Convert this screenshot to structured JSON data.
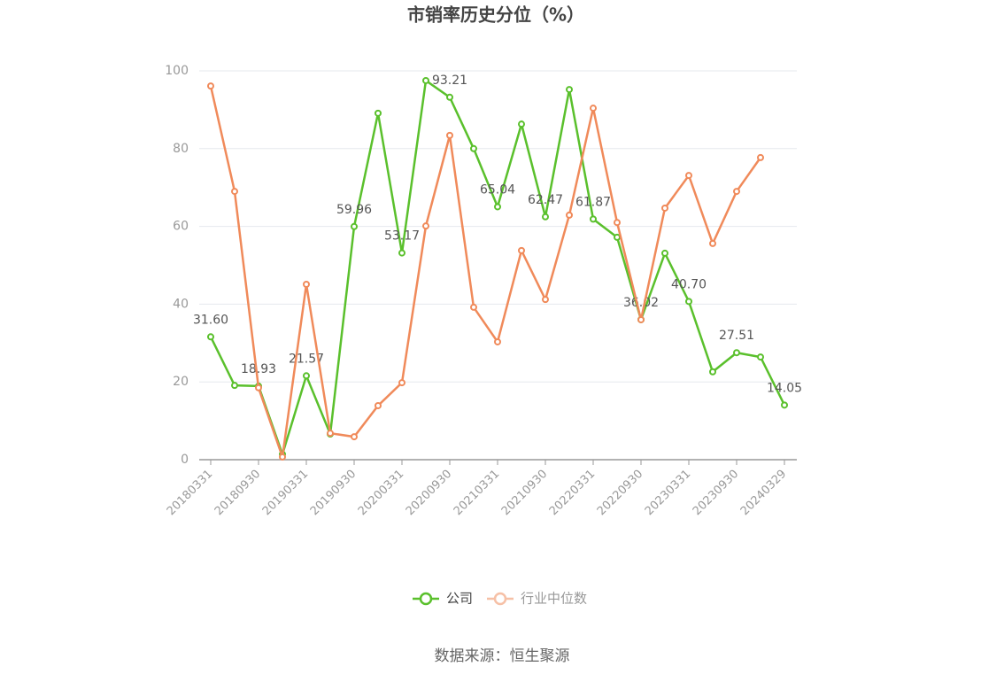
{
  "chart_data": {
    "type": "line",
    "title": "市销率历史分位（%）",
    "source": "数据来源：恒生聚源",
    "categories": [
      "20180331",
      null,
      "20180930",
      null,
      "20190331",
      null,
      "20190930",
      null,
      "20200331",
      null,
      "20200930",
      null,
      "20210331",
      null,
      "20210930",
      null,
      "20220331",
      null,
      "20220930",
      null,
      "20230331",
      null,
      "20230930",
      null,
      "20240329"
    ],
    "series": [
      {
        "name": "公司",
        "color": "#5ac02c",
        "values": [
          31.6,
          19.1,
          18.93,
          1.4,
          21.57,
          6.6,
          59.96,
          89.1,
          53.17,
          97.5,
          93.21,
          80.0,
          65.04,
          86.3,
          62.47,
          95.2,
          61.87,
          57.2,
          36.02,
          53.1,
          40.7,
          22.6,
          27.51,
          26.4,
          14.05
        ],
        "value_labels": [
          "31.60",
          null,
          "18.93",
          null,
          "21.57",
          null,
          "59.96",
          null,
          "53.17",
          null,
          "93.21",
          null,
          "65.04",
          null,
          "62.47",
          null,
          "61.87",
          null,
          "36.02",
          null,
          "40.70",
          null,
          "27.51",
          null,
          "14.05"
        ]
      },
      {
        "name": "行业中位数",
        "color": "#f08a5a",
        "values": [
          96.1,
          69.0,
          18.5,
          0.7,
          45.1,
          6.8,
          5.9,
          13.9,
          19.8,
          60.1,
          83.4,
          39.2,
          30.3,
          53.8,
          41.2,
          62.9,
          90.4,
          61.0,
          36.0,
          64.7,
          73.1,
          55.6,
          69.0,
          77.7,
          null
        ]
      }
    ],
    "ylim": [
      0,
      100
    ],
    "yticks": [
      0,
      20,
      40,
      60,
      80,
      100
    ],
    "grid": true
  }
}
